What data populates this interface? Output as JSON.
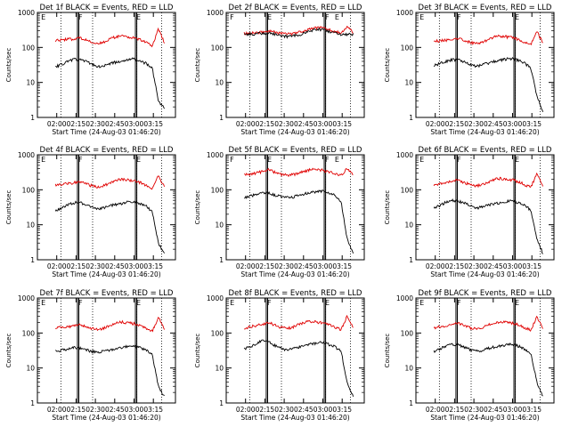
{
  "chart_data": [
    {
      "type": "line",
      "title": "Det 1f BLACK = Events, RED = LLD",
      "xlabel": "Start Time (24-Aug-03 01:46:20)",
      "ylabel": "Counts/sec",
      "x_ticks": [
        "02:00",
        "02:15",
        "02:30",
        "02:45",
        "03:00",
        "03:15"
      ],
      "y_ticks": [
        "1",
        "10",
        "100",
        "1000"
      ],
      "yscale": "log",
      "ylim": [
        1,
        1000
      ],
      "flags": [
        "E",
        "F",
        "E"
      ],
      "series": [
        {
          "values": [
            160,
            165,
            170,
            175,
            190,
            165,
            140,
            130,
            140,
            180,
            200,
            210,
            200,
            190,
            170,
            140,
            110,
            330,
            140
          ]
        },
        {
          "values": [
            28,
            32,
            40,
            46,
            45,
            40,
            33,
            28,
            30,
            35,
            38,
            40,
            45,
            47,
            40,
            35,
            25,
            3,
            1.8
          ]
        }
      ]
    },
    {
      "type": "line",
      "title": "Det 2f BLACK = Events, RED = LLD",
      "xlabel": "Start Time (24-Aug-03 01:46:20)",
      "ylabel": "Counts/sec",
      "x_ticks": [
        "02:00",
        "02:15",
        "02:30",
        "02:45",
        "03:00",
        "03:15"
      ],
      "y_ticks": [
        "1",
        "10",
        "100",
        "1000"
      ],
      "yscale": "log",
      "ylim": [
        1,
        1000
      ],
      "flags": [
        "F",
        "E",
        "F",
        "E"
      ],
      "series": [
        {
          "values": [
            250,
            255,
            260,
            270,
            300,
            280,
            250,
            240,
            250,
            270,
            300,
            340,
            370,
            360,
            320,
            280,
            260,
            400,
            260
          ]
        },
        {
          "values": [
            235,
            240,
            245,
            250,
            260,
            240,
            215,
            205,
            210,
            230,
            260,
            300,
            330,
            320,
            290,
            255,
            235,
            240,
            235
          ]
        }
      ]
    },
    {
      "type": "line",
      "title": "Det 3f BLACK = Events, RED = LLD",
      "xlabel": "Start Time (24-Aug-03 01:46:20)",
      "ylabel": "Counts/sec",
      "x_ticks": [
        "02:00",
        "02:15",
        "02:30",
        "02:45",
        "03:00",
        "03:15"
      ],
      "y_ticks": [
        "1",
        "10",
        "100",
        "1000"
      ],
      "yscale": "log",
      "ylim": [
        1,
        1000
      ],
      "flags": [
        "E",
        "F",
        "E"
      ],
      "series": [
        {
          "values": [
            150,
            155,
            160,
            170,
            185,
            160,
            140,
            130,
            140,
            170,
            200,
            210,
            200,
            190,
            170,
            140,
            120,
            290,
            130
          ]
        },
        {
          "values": [
            30,
            35,
            40,
            45,
            44,
            38,
            32,
            29,
            32,
            36,
            40,
            43,
            47,
            48,
            42,
            35,
            26,
            4,
            1.5
          ]
        }
      ]
    },
    {
      "type": "line",
      "title": "Det 4f BLACK = Events, RED = LLD",
      "xlabel": "Start Time (24-Aug-03 01:46:20)",
      "ylabel": "Counts/sec",
      "x_ticks": [
        "02:00",
        "02:15",
        "02:30",
        "02:45",
        "03:00",
        "03:15"
      ],
      "y_ticks": [
        "1",
        "10",
        "100",
        "1000"
      ],
      "yscale": "log",
      "ylim": [
        1,
        1000
      ],
      "flags": [
        "E",
        "F",
        "E"
      ],
      "series": [
        {
          "values": [
            140,
            145,
            150,
            160,
            175,
            150,
            130,
            120,
            130,
            160,
            190,
            200,
            190,
            180,
            160,
            130,
            110,
            260,
            120
          ]
        },
        {
          "values": [
            25,
            30,
            38,
            42,
            44,
            38,
            32,
            28,
            30,
            35,
            38,
            41,
            45,
            47,
            41,
            34,
            24,
            3,
            1.5
          ]
        }
      ]
    },
    {
      "type": "line",
      "title": "Det 5f BLACK = Events, RED = LLD",
      "xlabel": "Start Time (24-Aug-03 01:46:20)",
      "ylabel": "Counts/sec",
      "x_ticks": [
        "02:00",
        "02:15",
        "02:30",
        "02:45",
        "03:00",
        "03:15"
      ],
      "y_ticks": [
        "1",
        "10",
        "100",
        "1000"
      ],
      "yscale": "log",
      "ylim": [
        1,
        1000
      ],
      "flags": [
        "F",
        "E",
        "F",
        "E"
      ],
      "series": [
        {
          "values": [
            270,
            280,
            300,
            330,
            380,
            320,
            280,
            260,
            270,
            300,
            340,
            380,
            390,
            360,
            320,
            290,
            260,
            400,
            270
          ]
        },
        {
          "values": [
            60,
            65,
            75,
            85,
            80,
            70,
            65,
            60,
            62,
            70,
            78,
            85,
            88,
            90,
            80,
            70,
            45,
            4,
            1.5
          ]
        }
      ]
    },
    {
      "type": "line",
      "title": "Det 6f BLACK = Events, RED = LLD",
      "xlabel": "Start Time (24-Aug-03 01:46:20)",
      "ylabel": "Counts/sec",
      "x_ticks": [
        "02:00",
        "02:15",
        "02:30",
        "02:45",
        "03:00",
        "03:15"
      ],
      "y_ticks": [
        "1",
        "10",
        "100",
        "1000"
      ],
      "yscale": "log",
      "ylim": [
        1,
        1000
      ],
      "flags": [
        "E",
        "F",
        "E"
      ],
      "series": [
        {
          "values": [
            140,
            150,
            160,
            175,
            190,
            160,
            140,
            130,
            140,
            170,
            200,
            210,
            200,
            190,
            170,
            140,
            120,
            290,
            130
          ]
        },
        {
          "values": [
            30,
            35,
            45,
            50,
            48,
            42,
            35,
            30,
            33,
            37,
            40,
            44,
            47,
            48,
            42,
            35,
            26,
            4,
            1.5
          ]
        }
      ]
    },
    {
      "type": "line",
      "title": "Det 7f BLACK = Events, RED = LLD",
      "xlabel": "Start Time (24-Aug-03 01:46:20)",
      "ylabel": "Counts/sec",
      "x_ticks": [
        "02:00",
        "02:15",
        "02:30",
        "02:45",
        "03:00",
        "03:15"
      ],
      "y_ticks": [
        "1",
        "10",
        "100",
        "1000"
      ],
      "yscale": "log",
      "ylim": [
        1,
        1000
      ],
      "flags": [
        "E",
        "F",
        "E"
      ],
      "series": [
        {
          "values": [
            140,
            145,
            150,
            160,
            180,
            155,
            135,
            125,
            135,
            165,
            195,
            205,
            195,
            185,
            165,
            135,
            115,
            280,
            125
          ]
        },
        {
          "values": [
            30,
            32,
            35,
            38,
            37,
            33,
            30,
            28,
            30,
            33,
            36,
            38,
            41,
            43,
            38,
            32,
            24,
            3,
            1.5
          ]
        }
      ]
    },
    {
      "type": "line",
      "title": "Det 8f BLACK = Events, RED = LLD",
      "xlabel": "Start Time (24-Aug-03 01:46:20)",
      "ylabel": "Counts/sec",
      "x_ticks": [
        "02:00",
        "02:15",
        "02:30",
        "02:45",
        "03:00",
        "03:15"
      ],
      "y_ticks": [
        "1",
        "10",
        "100",
        "1000"
      ],
      "yscale": "log",
      "ylim": [
        1,
        1000
      ],
      "flags": [
        "E",
        "F",
        "E"
      ],
      "series": [
        {
          "values": [
            140,
            150,
            165,
            180,
            200,
            170,
            145,
            135,
            145,
            175,
            205,
            215,
            205,
            195,
            175,
            145,
            125,
            300,
            135
          ]
        },
        {
          "values": [
            35,
            40,
            50,
            60,
            55,
            45,
            38,
            32,
            35,
            40,
            45,
            48,
            52,
            55,
            47,
            40,
            30,
            4,
            1.5
          ]
        }
      ]
    },
    {
      "type": "line",
      "title": "Det 9f BLACK = Events, RED = LLD",
      "xlabel": "Start Time (24-Aug-03 01:46:20)",
      "ylabel": "Counts/sec",
      "x_ticks": [
        "02:00",
        "02:15",
        "02:30",
        "02:45",
        "03:00",
        "03:15"
      ],
      "y_ticks": [
        "1",
        "10",
        "100",
        "1000"
      ],
      "yscale": "log",
      "ylim": [
        1,
        1000
      ],
      "flags": [
        "E",
        "F",
        "E"
      ],
      "series": [
        {
          "values": [
            140,
            150,
            160,
            175,
            195,
            165,
            140,
            130,
            140,
            170,
            200,
            210,
            200,
            190,
            170,
            140,
            120,
            290,
            130
          ]
        },
        {
          "values": [
            30,
            35,
            42,
            48,
            46,
            40,
            34,
            30,
            32,
            36,
            40,
            43,
            46,
            48,
            42,
            35,
            26,
            4,
            1.5
          ]
        }
      ]
    }
  ]
}
